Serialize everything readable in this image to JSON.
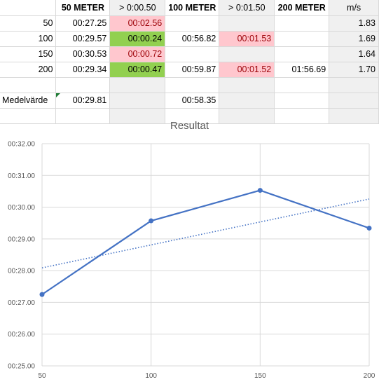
{
  "table": {
    "headers": [
      "",
      "50 METER",
      "> 0:00.50",
      "100 METER",
      "> 0:01.50",
      "200 METER",
      "m/s"
    ],
    "rows": [
      {
        "label": "50",
        "c1": "00:27.25",
        "c2": "00:02.56",
        "c3": "",
        "c4": "",
        "c5": "",
        "c6": "1.83"
      },
      {
        "label": "100",
        "c1": "00:29.57",
        "c2": "00:00.24",
        "c3": "00:56.82",
        "c4": "00:01.53",
        "c5": "",
        "c6": "1.69"
      },
      {
        "label": "150",
        "c1": "00:30.53",
        "c2": "00:00.72",
        "c3": "",
        "c4": "",
        "c5": "",
        "c6": "1.64"
      },
      {
        "label": "200",
        "c1": "00:29.34",
        "c2": "00:00.47",
        "c3": "00:59.87",
        "c4": "00:01.52",
        "c5": "01:56.69",
        "c6": "1.70"
      }
    ],
    "average": {
      "label": "Medelvärde",
      "c1": "00:29.81",
      "c3": "00:58.35"
    }
  },
  "colors": {
    "pink_fill": "#ffc7ce",
    "pink_text": "#9c0006",
    "green_fill": "#92d050",
    "series": "#4472c4",
    "grid": "#d9d9d9"
  },
  "chart_data": {
    "type": "line",
    "title": "Resultat",
    "xlabel": "",
    "ylabel": "",
    "x": [
      50,
      100,
      150,
      200
    ],
    "x_ticks": [
      "50",
      "100",
      "150",
      "200"
    ],
    "series": [
      {
        "values": [
          27.25,
          29.57,
          30.53,
          29.34
        ],
        "style": "solid",
        "markers": true
      }
    ],
    "trendline": {
      "type": "linear",
      "style": "dotted"
    },
    "ylim": [
      25.0,
      32.0
    ],
    "y_ticks": [
      "00:25.00",
      "00:26.00",
      "00:27.00",
      "00:28.00",
      "00:29.00",
      "00:30.00",
      "00:31.00",
      "00:32.00"
    ],
    "grid": true,
    "legend": "none"
  }
}
